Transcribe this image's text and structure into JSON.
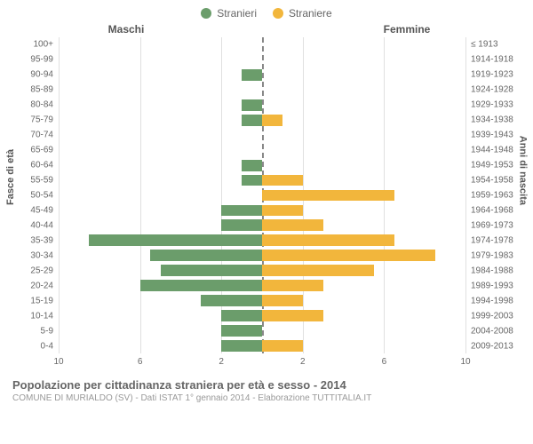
{
  "legend": {
    "male": {
      "label": "Stranieri",
      "color": "#6b9d6b"
    },
    "female": {
      "label": "Straniere",
      "color": "#f2b63c"
    }
  },
  "headers": {
    "left": "Maschi",
    "right": "Femmine"
  },
  "axis_titles": {
    "left": "Fasce di età",
    "right": "Anni di nascita"
  },
  "x_axis": {
    "max": 10,
    "ticks_left": [
      10,
      6,
      2
    ],
    "ticks_right": [
      2,
      6,
      10
    ]
  },
  "grid_color": "#e0e0e0",
  "center_line_color": "#888888",
  "background_color": "#ffffff",
  "caption": "Popolazione per cittadinanza straniera per età e sesso - 2014",
  "subcaption": "COMUNE DI MURIALDO (SV) - Dati ISTAT 1° gennaio 2014 - Elaborazione TUTTITALIA.IT",
  "rows": [
    {
      "age": "100+",
      "year": "≤ 1913",
      "m": 0,
      "f": 0
    },
    {
      "age": "95-99",
      "year": "1914-1918",
      "m": 0,
      "f": 0
    },
    {
      "age": "90-94",
      "year": "1919-1923",
      "m": 1,
      "f": 0
    },
    {
      "age": "85-89",
      "year": "1924-1928",
      "m": 0,
      "f": 0
    },
    {
      "age": "80-84",
      "year": "1929-1933",
      "m": 1,
      "f": 0
    },
    {
      "age": "75-79",
      "year": "1934-1938",
      "m": 1,
      "f": 1
    },
    {
      "age": "70-74",
      "year": "1939-1943",
      "m": 0,
      "f": 0
    },
    {
      "age": "65-69",
      "year": "1944-1948",
      "m": 0,
      "f": 0
    },
    {
      "age": "60-64",
      "year": "1949-1953",
      "m": 1,
      "f": 0
    },
    {
      "age": "55-59",
      "year": "1954-1958",
      "m": 1,
      "f": 2
    },
    {
      "age": "50-54",
      "year": "1959-1963",
      "m": 0,
      "f": 6.5
    },
    {
      "age": "45-49",
      "year": "1964-1968",
      "m": 2,
      "f": 2
    },
    {
      "age": "40-44",
      "year": "1969-1973",
      "m": 2,
      "f": 3
    },
    {
      "age": "35-39",
      "year": "1974-1978",
      "m": 8.5,
      "f": 6.5
    },
    {
      "age": "30-34",
      "year": "1979-1983",
      "m": 5.5,
      "f": 8.5
    },
    {
      "age": "25-29",
      "year": "1984-1988",
      "m": 5,
      "f": 5.5
    },
    {
      "age": "20-24",
      "year": "1989-1993",
      "m": 6,
      "f": 3
    },
    {
      "age": "15-19",
      "year": "1994-1998",
      "m": 3,
      "f": 2
    },
    {
      "age": "10-14",
      "year": "1999-2003",
      "m": 2,
      "f": 3
    },
    {
      "age": "5-9",
      "year": "2004-2008",
      "m": 2,
      "f": 0
    },
    {
      "age": "0-4",
      "year": "2009-2013",
      "m": 2,
      "f": 2
    }
  ]
}
